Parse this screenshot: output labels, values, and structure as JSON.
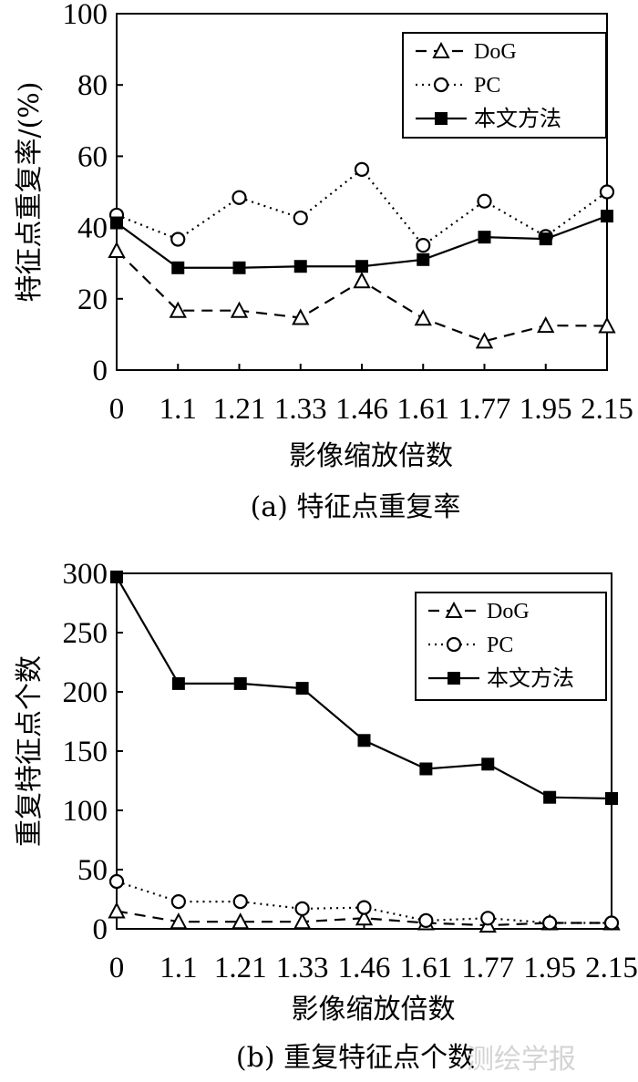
{
  "chart_data": [
    {
      "type": "line",
      "caption": "(a) 特征点重复率",
      "xlabel": "影像缩放倍数",
      "ylabel": "特征点重复率/(%)",
      "categories": [
        "0",
        "1.1",
        "1.21",
        "1.33",
        "1.46",
        "1.61",
        "1.77",
        "1.95",
        "2.15"
      ],
      "ylim": [
        0,
        100
      ],
      "yticks": [
        0,
        20,
        40,
        60,
        80,
        100
      ],
      "grid": false,
      "legend_position": "top-right",
      "series": [
        {
          "name": "DoG",
          "marker": "triangle",
          "line": "dashed",
          "values": [
            33.5,
            16.7,
            16.7,
            14.7,
            25,
            14.5,
            8.1,
            12.5,
            12.4
          ]
        },
        {
          "name": "PC",
          "marker": "circle",
          "line": "dotted",
          "values": [
            43.5,
            36.7,
            48.4,
            42.7,
            56.3,
            35,
            47.4,
            37.5,
            50
          ]
        },
        {
          "name": "本文方法",
          "marker": "square",
          "line": "solid",
          "values": [
            41.3,
            28.7,
            28.7,
            29.1,
            29.1,
            31,
            37.3,
            36.8,
            43.2
          ]
        }
      ]
    },
    {
      "type": "line",
      "caption": "(b) 重复特征点个数",
      "xlabel": "影像缩放倍数",
      "ylabel": "重复特征点个数",
      "categories": [
        "0",
        "1.1",
        "1.21",
        "1.33",
        "1.46",
        "1.61",
        "1.77",
        "1.95",
        "2.15"
      ],
      "ylim": [
        0,
        300
      ],
      "yticks": [
        0,
        50,
        100,
        150,
        200,
        250,
        300
      ],
      "grid": false,
      "legend_position": "top-right",
      "series": [
        {
          "name": "DoG",
          "marker": "triangle",
          "line": "dashed",
          "values": [
            15,
            6,
            6,
            6,
            9,
            5,
            3,
            5,
            5
          ]
        },
        {
          "name": "PC",
          "marker": "circle",
          "line": "dotted",
          "values": [
            40,
            23,
            23,
            17,
            18,
            7,
            9,
            5,
            5
          ]
        },
        {
          "name": "本文方法",
          "marker": "square",
          "line": "solid",
          "values": [
            297,
            207,
            207,
            203,
            159,
            135,
            139,
            111,
            110
          ]
        }
      ]
    }
  ],
  "watermark": "测绘学报"
}
